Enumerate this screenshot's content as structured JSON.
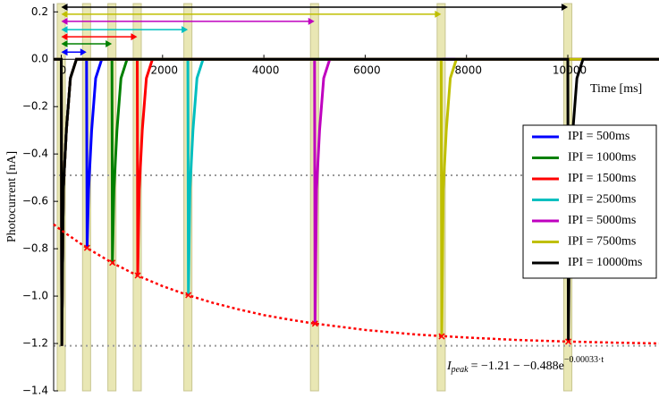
{
  "chart_data": {
    "type": "line",
    "x_label": "Time [ms]",
    "y_label": "Photocurrent [nA]",
    "xlim": [
      -150,
      11800
    ],
    "ylim": [
      -1.4,
      0.235
    ],
    "xticks": [
      0,
      2000,
      4000,
      6000,
      8000,
      10000
    ],
    "yticks": [
      0.2,
      {
        "value": 0.0,
        "label": "0.0"
      },
      {
        "value": -0.2,
        "label": "−0.2"
      },
      {
        "value": -0.4,
        "label": "−0.4"
      },
      {
        "value": -0.6,
        "label": "−0.6"
      },
      {
        "value": -0.8,
        "label": "−0.8"
      },
      {
        "value": -1.0,
        "label": "−1.0"
      },
      {
        "value": -1.2,
        "label": "−1.2"
      },
      {
        "value": -1.4,
        "label": "−1.4"
      }
    ],
    "legend_location": "right",
    "light_pulses": {
      "times": [
        0,
        500,
        1000,
        1500,
        2500,
        5000,
        7500,
        10000
      ],
      "width": 160,
      "color": "#e9e7b4"
    },
    "reference_lines": {
      "values": [
        -0.49,
        -1.21
      ],
      "color": "#999999"
    },
    "series": [
      {
        "name": "IPI = 500ms",
        "color": "#0000ff",
        "arrow_y": 0.03,
        "x": [
          -150,
          0,
          10,
          40,
          100,
          180,
          300,
          500,
          510,
          540,
          600,
          680,
          800,
          11800
        ],
        "values": [
          0,
          0,
          -1.21,
          -0.55,
          -0.3,
          -0.08,
          0,
          0,
          -0.796,
          -0.55,
          -0.3,
          -0.08,
          0,
          0
        ]
      },
      {
        "name": "IPI = 1000ms",
        "color": "#008000",
        "arrow_y": 0.065,
        "x": [
          -150,
          0,
          10,
          40,
          100,
          180,
          300,
          1000,
          1010,
          1040,
          1100,
          1180,
          1300,
          11800
        ],
        "values": [
          0,
          0,
          -1.21,
          -0.55,
          -0.3,
          -0.08,
          0,
          0,
          -0.859,
          -0.55,
          -0.3,
          -0.08,
          0,
          0
        ]
      },
      {
        "name": "IPI = 1500ms",
        "color": "#ff0000",
        "arrow_y": 0.095,
        "x": [
          -150,
          0,
          10,
          40,
          100,
          180,
          300,
          1500,
          1510,
          1540,
          1600,
          1680,
          1800,
          11800
        ],
        "values": [
          0,
          0,
          -1.21,
          -0.55,
          -0.3,
          -0.08,
          0,
          0,
          -0.913,
          -0.55,
          -0.3,
          -0.08,
          0,
          0
        ]
      },
      {
        "name": "IPI = 2500ms",
        "color": "#00bfbf",
        "arrow_y": 0.125,
        "x": [
          -150,
          0,
          10,
          40,
          100,
          180,
          300,
          2500,
          2510,
          2540,
          2600,
          2680,
          2800,
          11800
        ],
        "values": [
          0,
          0,
          -1.21,
          -0.55,
          -0.3,
          -0.08,
          0,
          0,
          -0.996,
          -0.55,
          -0.3,
          -0.08,
          0,
          0
        ]
      },
      {
        "name": "IPI = 5000ms",
        "color": "#bf00bf",
        "arrow_y": 0.16,
        "x": [
          -150,
          0,
          10,
          40,
          100,
          180,
          300,
          5000,
          5010,
          5040,
          5100,
          5180,
          5300,
          11800
        ],
        "values": [
          0,
          0,
          -1.21,
          -0.55,
          -0.3,
          -0.08,
          0,
          0,
          -1.116,
          -0.55,
          -0.3,
          -0.08,
          0,
          0
        ]
      },
      {
        "name": "IPI = 7500ms",
        "color": "#bfbf00",
        "arrow_y": 0.19,
        "x": [
          -150,
          0,
          10,
          40,
          100,
          180,
          300,
          7500,
          7510,
          7540,
          7600,
          7680,
          7800,
          11800
        ],
        "values": [
          0,
          0,
          -1.21,
          -0.55,
          -0.3,
          -0.08,
          0,
          0,
          -1.17,
          -0.55,
          -0.3,
          -0.08,
          0,
          0
        ]
      },
      {
        "name": "IPI = 10000ms",
        "color": "#000000",
        "arrow_y": 0.22,
        "x": [
          -150,
          0,
          10,
          40,
          100,
          180,
          300,
          10000,
          10010,
          10040,
          10100,
          10180,
          10300,
          11800
        ],
        "values": [
          0,
          0,
          -1.21,
          -0.55,
          -0.3,
          -0.08,
          0,
          0,
          -1.192,
          -0.55,
          -0.3,
          -0.08,
          0,
          0
        ]
      }
    ],
    "fit": {
      "color": "#ff0000",
      "x": [
        -150,
        0,
        500,
        1000,
        1500,
        2000,
        2500,
        3000,
        3500,
        4000,
        4500,
        5000,
        6000,
        7000,
        8000,
        9000,
        10000,
        11000,
        11800
      ],
      "values": [
        -0.697,
        -0.722,
        -0.796,
        -0.859,
        -0.913,
        -0.958,
        -0.996,
        -1.029,
        -1.056,
        -1.08,
        -1.099,
        -1.116,
        -1.143,
        -1.162,
        -1.175,
        -1.185,
        -1.192,
        -1.197,
        -1.2
      ],
      "formula": {
        "symbol": "I",
        "subscript": "peak",
        "body": "= −1.21 − −0.488e",
        "exponent": "−0.00033·t"
      }
    }
  }
}
